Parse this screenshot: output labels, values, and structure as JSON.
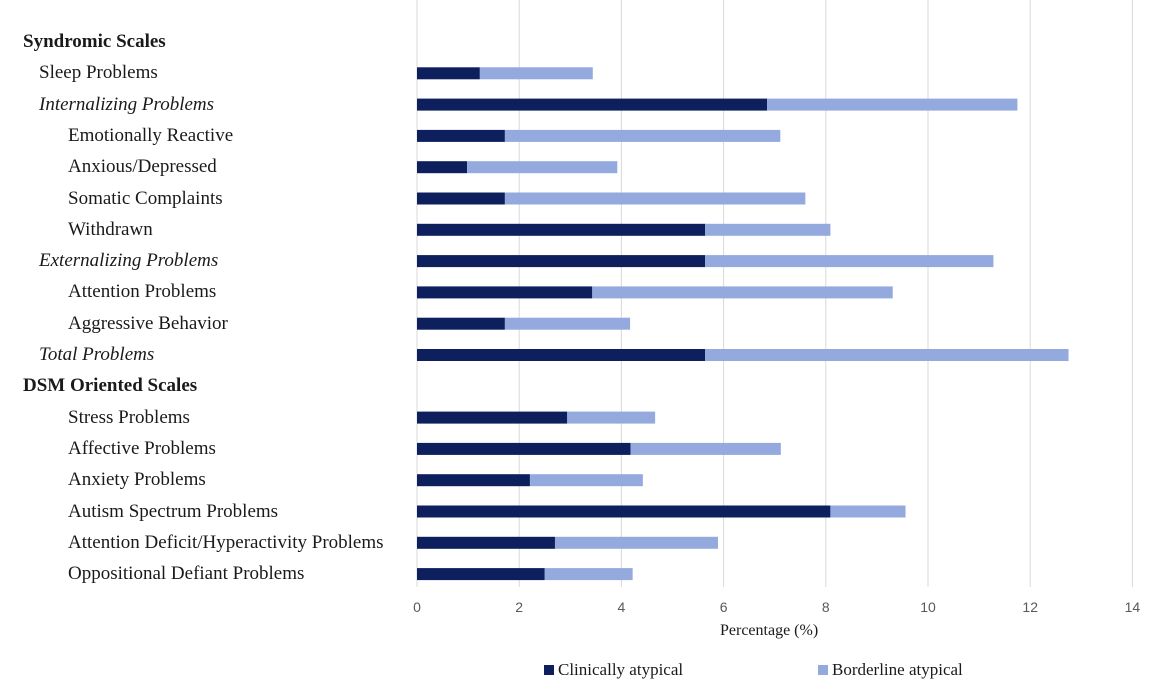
{
  "chart_data": {
    "type": "bar",
    "orientation": "horizontal",
    "stacked": true,
    "xlabel": "Percentage (%)",
    "xlim": [
      0,
      14
    ],
    "xticks": [
      0,
      2,
      4,
      6,
      8,
      10,
      12,
      14
    ],
    "grid": true,
    "legend_position": "bottom",
    "categories": [
      {
        "label": "Syndromic Scales",
        "style": "header",
        "indent": 0
      },
      {
        "label": "Sleep Problems",
        "style": "normal",
        "indent": 1
      },
      {
        "label": "Internalizing Problems",
        "style": "italic",
        "indent": 1
      },
      {
        "label": "Emotionally Reactive",
        "style": "normal",
        "indent": 2
      },
      {
        "label": "Anxious/Depressed",
        "style": "normal",
        "indent": 2
      },
      {
        "label": "Somatic Complaints",
        "style": "normal",
        "indent": 2
      },
      {
        "label": "Withdrawn",
        "style": "normal",
        "indent": 2
      },
      {
        "label": "Externalizing Problems",
        "style": "italic",
        "indent": 1
      },
      {
        "label": "Attention Problems",
        "style": "normal",
        "indent": 2
      },
      {
        "label": "Aggressive Behavior",
        "style": "normal",
        "indent": 2
      },
      {
        "label": "Total Problems",
        "style": "italic",
        "indent": 1
      },
      {
        "label": "DSM Oriented Scales",
        "style": "header",
        "indent": 0
      },
      {
        "label": "Stress Problems",
        "style": "normal",
        "indent": 2
      },
      {
        "label": "Affective Problems",
        "style": "normal",
        "indent": 2
      },
      {
        "label": "Anxiety Problems",
        "style": "normal",
        "indent": 2
      },
      {
        "label": "Autism Spectrum Problems",
        "style": "normal",
        "indent": 2
      },
      {
        "label": "Attention Deficit/Hyperactivity Problems",
        "style": "normal",
        "indent": 2
      },
      {
        "label": "Oppositional Defiant Problems",
        "style": "normal",
        "indent": 2
      }
    ],
    "series": [
      {
        "name": "Clinically atypical",
        "color": "#0d1f5c",
        "values": [
          null,
          1.23,
          6.85,
          1.72,
          0.98,
          1.72,
          5.64,
          5.64,
          3.43,
          1.72,
          5.64,
          null,
          2.94,
          4.18,
          2.21,
          8.09,
          2.7,
          2.5
        ]
      },
      {
        "name": "Borderline atypical",
        "color": "#94a9de",
        "values": [
          null,
          2.21,
          4.9,
          5.39,
          2.94,
          5.88,
          2.45,
          5.64,
          5.88,
          2.45,
          7.11,
          null,
          1.72,
          2.94,
          2.21,
          1.47,
          3.19,
          1.72
        ]
      }
    ]
  }
}
